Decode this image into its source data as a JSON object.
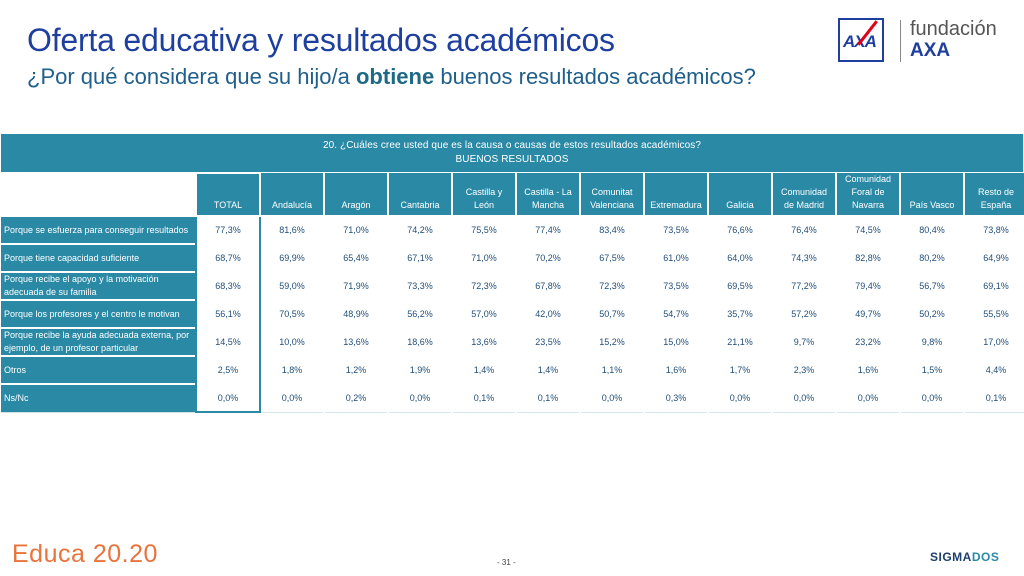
{
  "header": {
    "title": "Oferta educativa y resultados académicos",
    "subtitle_pre": "¿Por qué considera que su hijo/a ",
    "subtitle_bold": "obtiene",
    "subtitle_post": " buenos resultados académicos?"
  },
  "logo": {
    "mark": "AXA",
    "line1": "fundación",
    "line2": "AXA",
    "colors": {
      "blue": "#1f3f9e",
      "red": "#e2001a"
    }
  },
  "table": {
    "question": "20. ¿Cuáles cree usted que es la causa o causas de estos resultados académicos?",
    "filter": "BUENOS RESULTADOS",
    "columns": [
      [
        "TOTAL"
      ],
      [
        "Andalucía"
      ],
      [
        "Aragón"
      ],
      [
        "Cantabria"
      ],
      [
        "Castilla y",
        "León"
      ],
      [
        "Castilla - La",
        "Mancha"
      ],
      [
        "Comunitat",
        "Valenciana"
      ],
      [
        "Extremadura"
      ],
      [
        "Galicia"
      ],
      [
        "Comunidad",
        "de Madrid"
      ],
      [
        "Comunidad",
        "Foral de",
        "Navarra"
      ],
      [
        "País Vasco"
      ],
      [
        "Resto de",
        "España"
      ]
    ],
    "rows": [
      {
        "label": "Porque se esfuerza para conseguir resultados",
        "values": [
          "77,3%",
          "81,6%",
          "71,0%",
          "74,2%",
          "75,5%",
          "77,4%",
          "83,4%",
          "73,5%",
          "76,6%",
          "76,4%",
          "74,5%",
          "80,4%",
          "73,8%"
        ]
      },
      {
        "label": "Porque tiene capacidad suficiente",
        "values": [
          "68,7%",
          "69,9%",
          "65,4%",
          "67,1%",
          "71,0%",
          "70,2%",
          "67,5%",
          "61,0%",
          "64,0%",
          "74,3%",
          "82,8%",
          "80,2%",
          "64,9%"
        ]
      },
      {
        "label": "Porque recibe el apoyo y la motivación adecuada de su familia",
        "values": [
          "68,3%",
          "59,0%",
          "71,9%",
          "73,3%",
          "72,3%",
          "67,8%",
          "72,3%",
          "73,5%",
          "69,5%",
          "77,2%",
          "79,4%",
          "56,7%",
          "69,1%"
        ]
      },
      {
        "label": "Porque los profesores y el centro le motivan",
        "values": [
          "56,1%",
          "70,5%",
          "48,9%",
          "56,2%",
          "57,0%",
          "42,0%",
          "50,7%",
          "54,7%",
          "35,7%",
          "57,2%",
          "49,7%",
          "50,2%",
          "55,5%"
        ]
      },
      {
        "label": "Porque recibe la ayuda adecuada externa, por ejemplo, de un profesor particular",
        "values": [
          "14,5%",
          "10,0%",
          "13,6%",
          "18,6%",
          "13,6%",
          "23,5%",
          "15,2%",
          "15,0%",
          "21,1%",
          "9,7%",
          "23,2%",
          "9,8%",
          "17,0%"
        ]
      },
      {
        "label": "Otros",
        "values": [
          "2,5%",
          "1,8%",
          "1,2%",
          "1,9%",
          "1,4%",
          "1,4%",
          "1,1%",
          "1,6%",
          "1,7%",
          "2,3%",
          "1,6%",
          "1,5%",
          "4,4%"
        ]
      },
      {
        "label": "Ns/Nc",
        "values": [
          "0,0%",
          "0,0%",
          "0,2%",
          "0,0%",
          "0,1%",
          "0,1%",
          "0,0%",
          "0,3%",
          "0,0%",
          "0,0%",
          "0,0%",
          "0,0%",
          "0,1%"
        ]
      }
    ]
  },
  "footer": {
    "brand": "Educa 20.20",
    "page": "- 31 -",
    "sigma_a": "SIGMA",
    "sigma_b": "DOS"
  },
  "colors": {
    "header_band": "#2a8aa6",
    "title": "#1f3f9e",
    "educa": "#e8743b"
  }
}
